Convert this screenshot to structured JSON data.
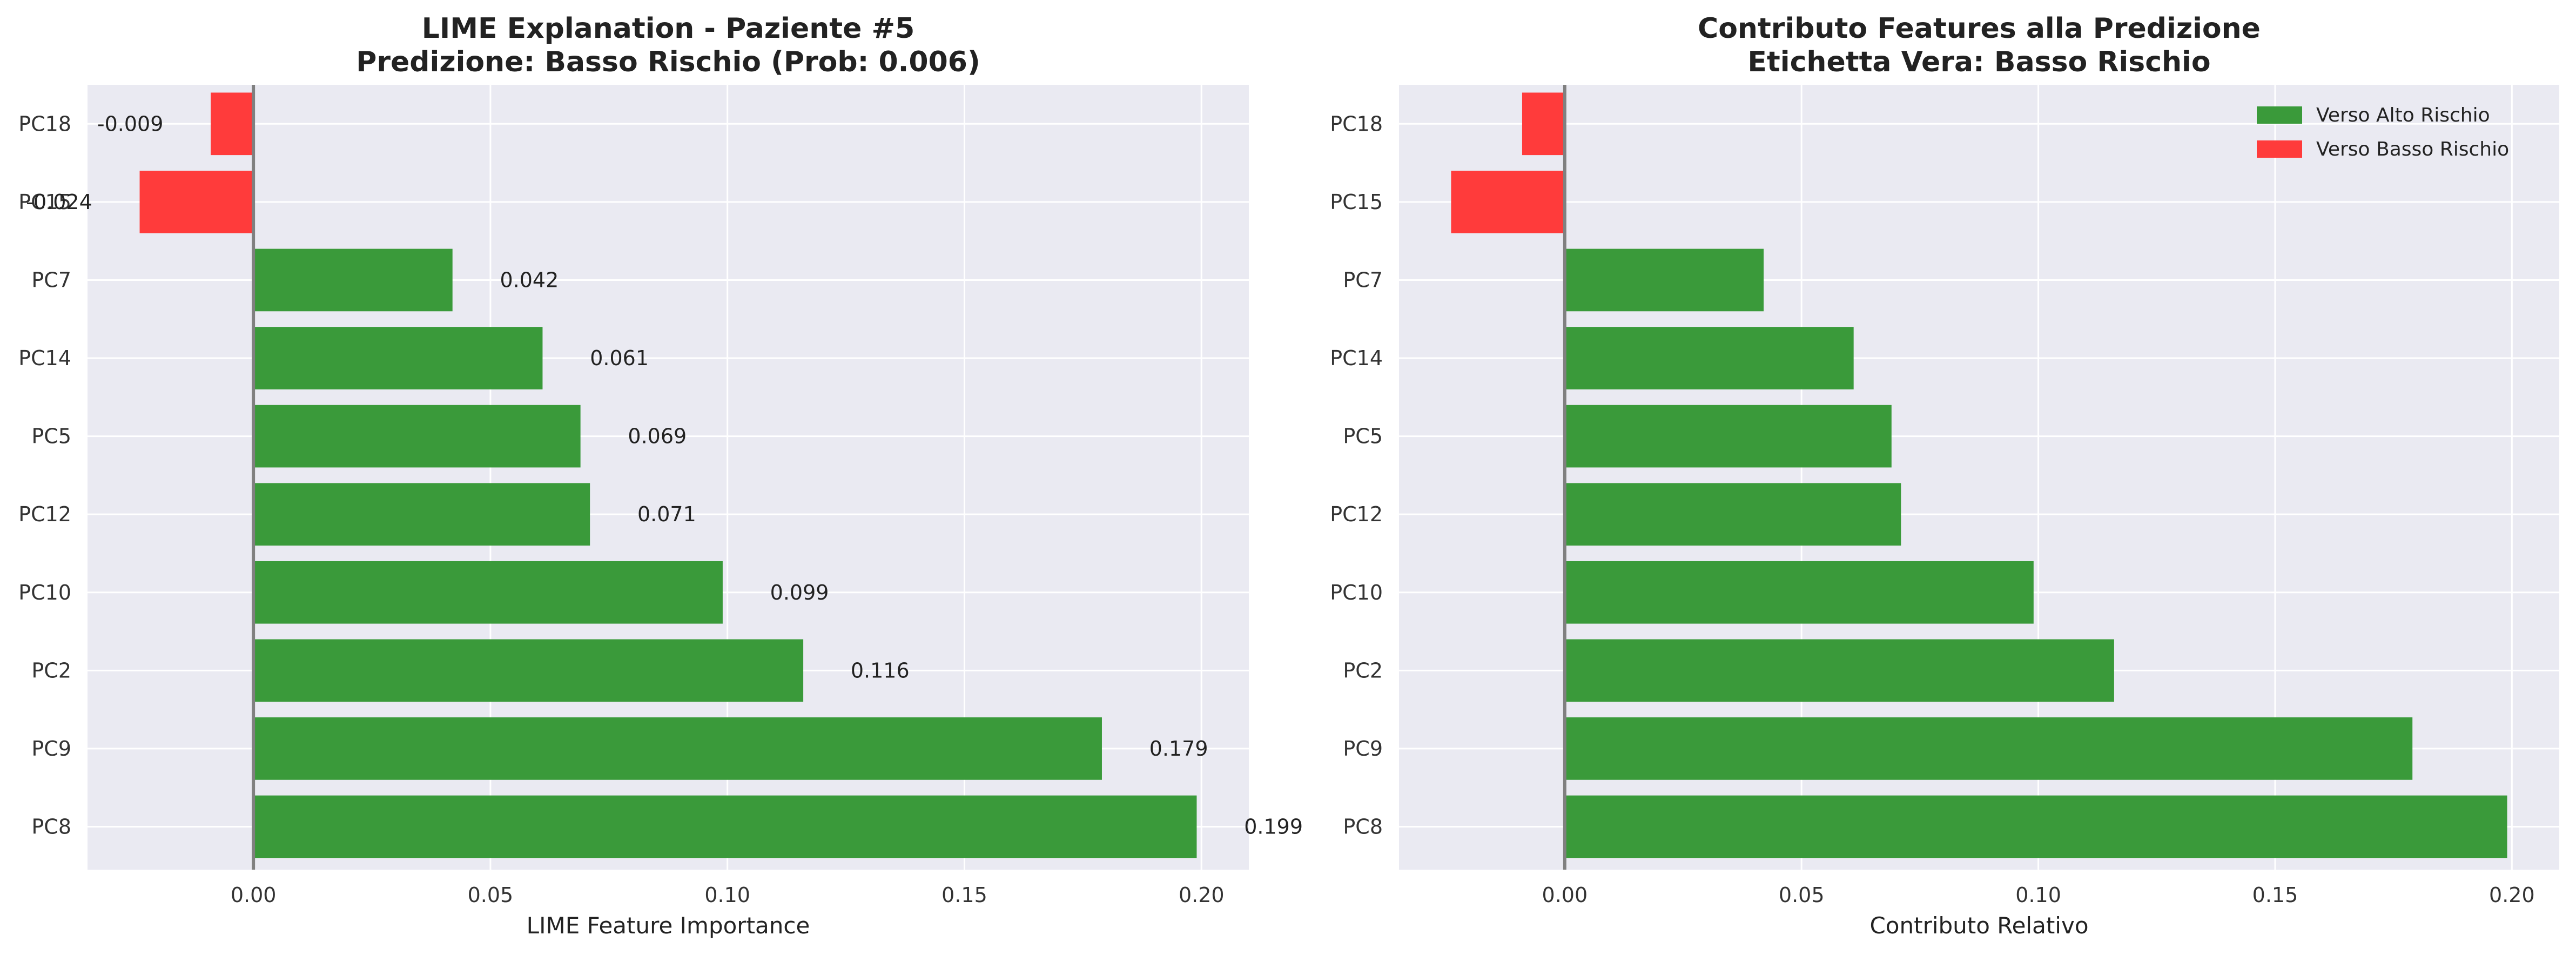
{
  "chart_data": [
    {
      "type": "bar",
      "orientation": "horizontal",
      "title": "LIME Explanation - Paziente #5\nPredizione: Basso Rischio (Prob: 0.006)",
      "title_lines": [
        "LIME Explanation - Paziente #5",
        "Predizione: Basso Rischio (Prob: 0.006)"
      ],
      "xlabel": "LIME Feature Importance",
      "ylabel": "",
      "categories": [
        "PC18",
        "PC15",
        "PC7",
        "PC14",
        "PC5",
        "PC12",
        "PC10",
        "PC2",
        "PC9",
        "PC8"
      ],
      "values": [
        -0.009,
        -0.024,
        0.042,
        0.061,
        0.069,
        0.071,
        0.099,
        0.116,
        0.179,
        0.199
      ],
      "value_labels": [
        "-0.009",
        "-0.024",
        "0.042",
        "0.061",
        "0.069",
        "0.071",
        "0.099",
        "0.116",
        "0.179",
        "0.199"
      ],
      "xlim": [
        -0.035,
        0.21
      ],
      "xticks": [
        0.0,
        0.05,
        0.1,
        0.15,
        0.2
      ],
      "xtick_labels": [
        "0.00",
        "0.05",
        "0.10",
        "0.15",
        "0.20"
      ],
      "grid": true,
      "show_value_labels": true,
      "legend": null
    },
    {
      "type": "bar",
      "orientation": "horizontal",
      "title": "Contributo Features alla Predizione\nEtichetta Vera: Basso Rischio",
      "title_lines": [
        "Contributo Features alla Predizione",
        "Etichetta Vera: Basso Rischio"
      ],
      "xlabel": "Contributo Relativo",
      "ylabel": "",
      "categories": [
        "PC18",
        "PC15",
        "PC7",
        "PC14",
        "PC5",
        "PC12",
        "PC10",
        "PC2",
        "PC9",
        "PC8"
      ],
      "values": [
        -0.009,
        -0.024,
        0.042,
        0.061,
        0.069,
        0.071,
        0.099,
        0.116,
        0.179,
        0.199
      ],
      "xlim": [
        -0.035,
        0.21
      ],
      "xticks": [
        0.0,
        0.05,
        0.1,
        0.15,
        0.2
      ],
      "xtick_labels": [
        "0.00",
        "0.05",
        "0.10",
        "0.15",
        "0.20"
      ],
      "grid": true,
      "show_value_labels": false,
      "legend": {
        "placement": "top-right",
        "entries": [
          {
            "label": "Verso Alto Rischio",
            "color": "#3a9a3a"
          },
          {
            "label": "Verso Basso Rischio",
            "color": "#ff3b3b"
          }
        ]
      }
    }
  ],
  "colors": {
    "positive": "#3a9a3a",
    "negative": "#ff3b3b",
    "plot_background": "#eaeaf2",
    "grid": "#ffffff",
    "zero_line": "#808080"
  }
}
